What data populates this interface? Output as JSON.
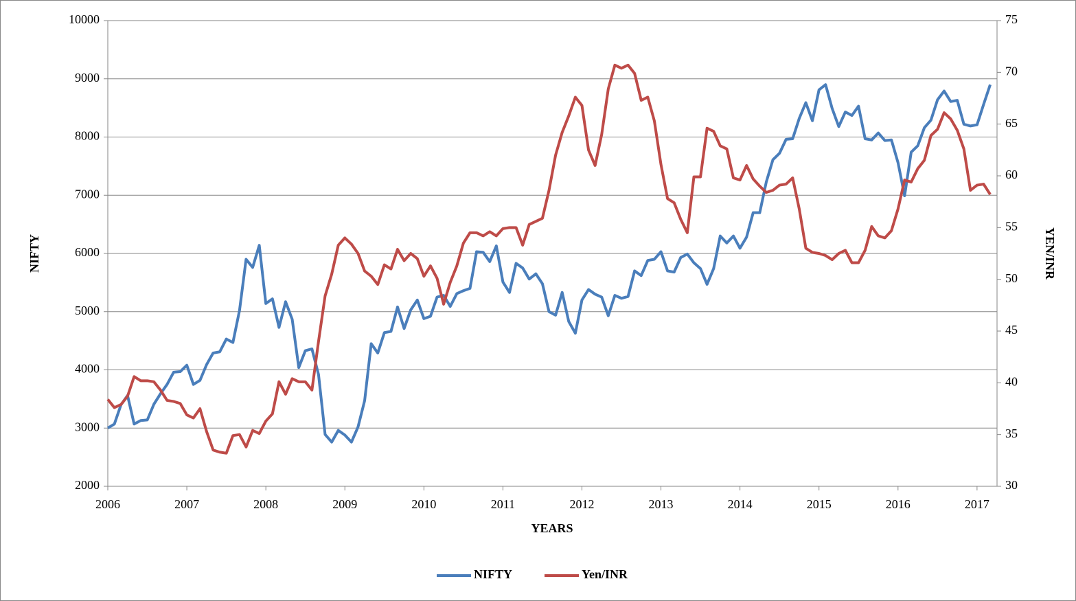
{
  "chart_data": {
    "type": "line",
    "x_label": "YEARS",
    "y_label": "NIFTY",
    "y2_label": "YEN/INR",
    "categories": [
      "2006",
      null,
      null,
      null,
      null,
      null,
      null,
      null,
      null,
      null,
      null,
      null,
      "2007",
      null,
      null,
      null,
      null,
      null,
      null,
      null,
      null,
      null,
      null,
      null,
      "2008",
      null,
      null,
      null,
      null,
      null,
      null,
      null,
      null,
      null,
      null,
      null,
      "2009",
      null,
      null,
      null,
      null,
      null,
      null,
      null,
      null,
      null,
      null,
      null,
      "2010",
      null,
      null,
      null,
      null,
      null,
      null,
      null,
      null,
      null,
      null,
      null,
      "2011",
      null,
      null,
      null,
      null,
      null,
      null,
      null,
      null,
      null,
      null,
      null,
      "2012",
      null,
      null,
      null,
      null,
      null,
      null,
      null,
      null,
      null,
      null,
      null,
      "2013",
      null,
      null,
      null,
      null,
      null,
      null,
      null,
      null,
      null,
      null,
      null,
      "2014",
      null,
      null,
      null,
      null,
      null,
      null,
      null,
      null,
      null,
      null,
      null,
      "2015",
      null,
      null,
      null,
      null,
      null,
      null,
      null,
      null,
      null,
      null,
      null,
      "2016",
      null,
      null,
      null,
      null,
      null,
      null,
      null,
      null,
      null,
      null,
      null,
      "2017",
      null,
      null
    ],
    "series": [
      {
        "name": "NIFTY",
        "color": "#4a7ebb",
        "axis": "y",
        "values": [
          3000,
          3070,
          3400,
          3560,
          3070,
          3130,
          3140,
          3410,
          3590,
          3750,
          3960,
          3970,
          4080,
          3750,
          3820,
          4090,
          4290,
          4310,
          4530,
          4470,
          5020,
          5900,
          5760,
          6140,
          5140,
          5220,
          4730,
          5170,
          4870,
          4040,
          4330,
          4360,
          3920,
          2890,
          2760,
          2960,
          2880,
          2760,
          3020,
          3470,
          4450,
          4290,
          4640,
          4660,
          5080,
          4710,
          5030,
          5200,
          4880,
          4920,
          5250,
          5280,
          5090,
          5310,
          5360,
          5400,
          6030,
          6020,
          5860,
          6130,
          5510,
          5330,
          5830,
          5750,
          5560,
          5650,
          5480,
          5000,
          4940,
          5330,
          4830,
          4630,
          5200,
          5380,
          5300,
          5250,
          4930,
          5280,
          5230,
          5260,
          5700,
          5620,
          5880,
          5900,
          6030,
          5700,
          5680,
          5930,
          5990,
          5840,
          5740,
          5470,
          5740,
          6300,
          6180,
          6300,
          6090,
          6280,
          6700,
          6700,
          7230,
          7610,
          7720,
          7960,
          7970,
          8320,
          8590,
          8280,
          8810,
          8900,
          8490,
          8180,
          8430,
          8370,
          8530,
          7970,
          7950,
          8070,
          7940,
          7950,
          7560,
          6990,
          7740,
          7850,
          8160,
          8290,
          8640,
          8790,
          8610,
          8630,
          8220,
          8190,
          8210,
          8560,
          8900
        ]
      },
      {
        "name": "Yen/INR",
        "color": "#be4b48",
        "axis": "y2",
        "values": [
          38.4,
          37.6,
          37.9,
          38.7,
          40.6,
          40.2,
          40.2,
          40.1,
          39.3,
          38.3,
          38.2,
          38.0,
          36.9,
          36.6,
          37.5,
          35.3,
          33.5,
          33.3,
          33.2,
          34.9,
          35.0,
          33.8,
          35.4,
          35.1,
          36.3,
          37.0,
          40.1,
          38.9,
          40.4,
          40.1,
          40.1,
          39.3,
          44.0,
          48.4,
          50.5,
          53.3,
          54.0,
          53.4,
          52.5,
          50.8,
          50.3,
          49.5,
          51.4,
          51.0,
          52.9,
          51.8,
          52.5,
          52.0,
          50.3,
          51.3,
          50.1,
          47.6,
          49.7,
          51.3,
          53.5,
          54.5,
          54.5,
          54.2,
          54.6,
          54.2,
          54.9,
          55.0,
          55.0,
          53.3,
          55.3,
          55.6,
          55.9,
          58.6,
          62.0,
          64.2,
          65.8,
          67.6,
          66.8,
          62.5,
          61.0,
          64.0,
          68.4,
          70.7,
          70.4,
          70.7,
          69.9,
          67.3,
          67.6,
          65.3,
          61.1,
          57.8,
          57.4,
          55.8,
          54.5,
          59.9,
          59.9,
          64.6,
          64.3,
          62.9,
          62.6,
          59.8,
          59.6,
          61.0,
          59.7,
          59.0,
          58.4,
          58.6,
          59.1,
          59.2,
          59.8,
          56.8,
          53.0,
          52.6,
          52.5,
          52.3,
          51.9,
          52.5,
          52.8,
          51.6,
          51.6,
          52.8,
          55.1,
          54.2,
          54.0,
          54.7,
          56.8,
          59.6,
          59.4,
          60.7,
          61.5,
          63.9,
          64.5,
          66.1,
          65.5,
          64.4,
          62.6,
          58.6,
          59.1,
          59.2,
          58.2
        ]
      }
    ],
    "ylim": [
      2000,
      10000
    ],
    "yticks": [
      2000,
      3000,
      4000,
      5000,
      6000,
      7000,
      8000,
      9000,
      10000
    ],
    "y2lim": [
      30,
      75
    ],
    "y2ticks": [
      30,
      35,
      40,
      45,
      50,
      55,
      60,
      65,
      70,
      75
    ],
    "grid": true,
    "legend": "bottom"
  }
}
